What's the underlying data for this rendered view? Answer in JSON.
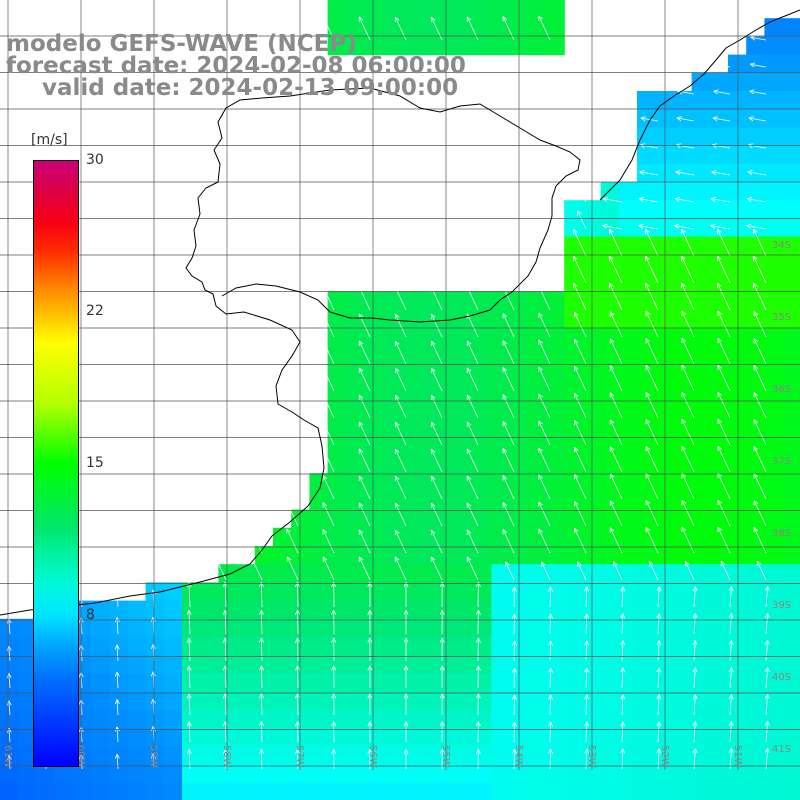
{
  "title": {
    "line1": "modelo GEFS-WAVE (NCEP)",
    "line2": "forecast date: 2024-02-08 06:00:00",
    "line3": "valid date: 2024-02-13 09:00:00"
  },
  "colorbar": {
    "units": "[m/s]",
    "max_label": "30",
    "ticks": [
      "30",
      "22",
      "15",
      "8"
    ],
    "min_value": 0,
    "max_value": 30
  },
  "map_labels": {
    "lon_bottom": [
      "61W",
      "60W",
      "59W",
      "58W",
      "57W",
      "56W",
      "55W",
      "54W",
      "53W",
      "52W",
      "51W"
    ],
    "lat_right": [
      "34S",
      "35S",
      "36S",
      "37S",
      "38S",
      "39S",
      "40S",
      "41S"
    ]
  },
  "colors": {
    "title": "#8a8a8a",
    "grid": "#555555",
    "coast": "#000000",
    "arrows": "#ffffff"
  }
}
